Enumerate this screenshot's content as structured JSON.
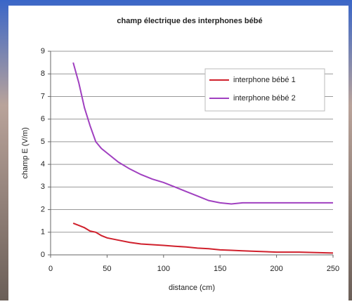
{
  "chart_data": {
    "type": "line",
    "title": "champ électrique des interphones bébé",
    "x_label": "distance (cm)",
    "y_label": "champ E (V/m)",
    "x": [
      20,
      25,
      30,
      35,
      40,
      45,
      50,
      60,
      70,
      80,
      90,
      100,
      110,
      120,
      130,
      140,
      150,
      160,
      170,
      180,
      200,
      220,
      250
    ],
    "series": [
      {
        "name": "interphone bébé 1",
        "color": "#d0202c",
        "values": [
          1.4,
          1.3,
          1.2,
          1.05,
          1.0,
          0.85,
          0.75,
          0.65,
          0.55,
          0.48,
          0.45,
          0.42,
          0.38,
          0.35,
          0.3,
          0.27,
          0.22,
          0.2,
          0.18,
          0.16,
          0.12,
          0.12,
          0.08
        ]
      },
      {
        "name": "interphone bébé 2",
        "color": "#a040c0",
        "values": [
          8.5,
          7.6,
          6.5,
          5.7,
          5.0,
          4.7,
          4.5,
          4.1,
          3.8,
          3.55,
          3.35,
          3.2,
          3.0,
          2.8,
          2.6,
          2.4,
          2.3,
          2.25,
          2.3,
          2.3,
          2.3,
          2.3,
          2.3
        ]
      }
    ],
    "xlim": [
      0,
      250
    ],
    "xticks": [
      0,
      50,
      100,
      150,
      200,
      250
    ],
    "ylim": [
      0,
      9
    ],
    "yticks": [
      0,
      1,
      2,
      3,
      4,
      5,
      6,
      7,
      8,
      9
    ],
    "grid": true,
    "legend": "upper right"
  }
}
